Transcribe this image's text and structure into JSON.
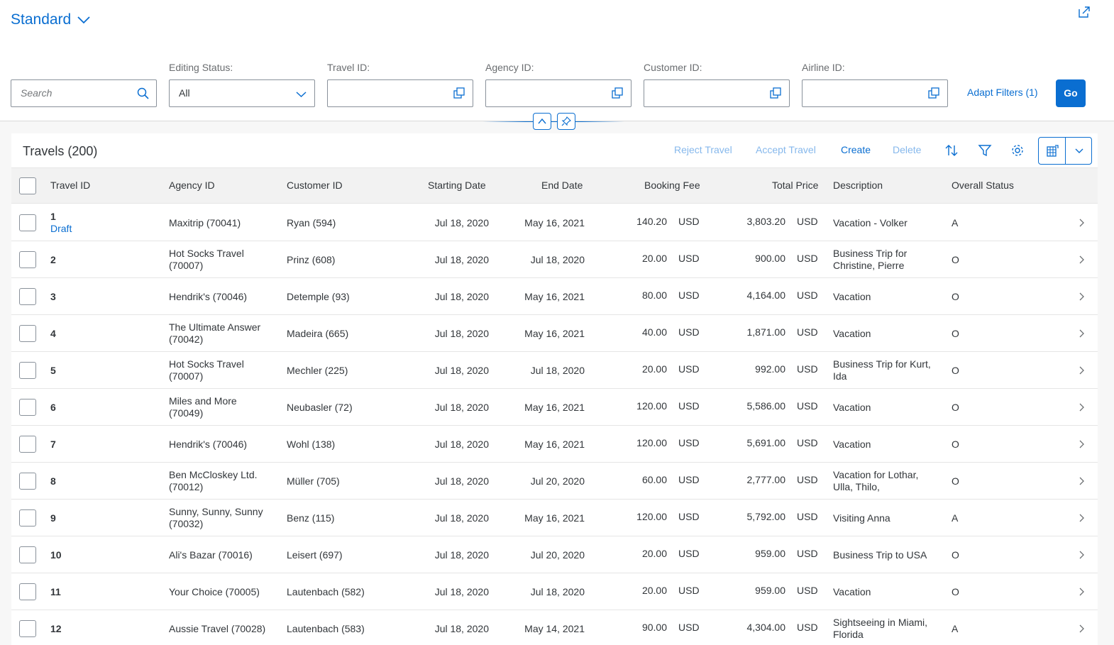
{
  "header": {
    "variant_label": "Standard",
    "search_placeholder": "Search",
    "filters": [
      {
        "label": "Editing Status:",
        "value": "All"
      },
      {
        "label": "Travel ID:",
        "value": ""
      },
      {
        "label": "Agency ID:",
        "value": ""
      },
      {
        "label": "Customer ID:",
        "value": ""
      },
      {
        "label": "Airline ID:",
        "value": ""
      }
    ],
    "adapt_filters_label": "Adapt Filters (1)",
    "go_label": "Go"
  },
  "table": {
    "title": "Travels (200)",
    "actions": {
      "reject": "Reject Travel",
      "accept": "Accept Travel",
      "create": "Create",
      "delete": "Delete"
    },
    "columns": [
      "Travel ID",
      "Agency ID",
      "Customer ID",
      "Starting Date",
      "End Date",
      "Booking Fee",
      "Total Price",
      "Description",
      "Overall Status"
    ],
    "rows": [
      {
        "id": "1",
        "sub": "Draft",
        "agency1": "Maxitrip (70041)",
        "agency2": "",
        "customer": "Ryan (594)",
        "start": "Jul 18, 2020",
        "end": "May 16, 2021",
        "fee": "140.20",
        "fee_cur": "USD",
        "price": "3,803.20",
        "price_cur": "USD",
        "desc1": "Vacation - Volker",
        "desc2": "",
        "status": "A"
      },
      {
        "id": "2",
        "sub": "",
        "agency1": "Hot Socks Travel",
        "agency2": "(70007)",
        "customer": "Prinz (608)",
        "start": "Jul 18, 2020",
        "end": "Jul 18, 2020",
        "fee": "20.00",
        "fee_cur": "USD",
        "price": "900.00",
        "price_cur": "USD",
        "desc1": "Business Trip for",
        "desc2": "Christine, Pierre",
        "status": "O"
      },
      {
        "id": "3",
        "sub": "",
        "agency1": "Hendrik's (70046)",
        "agency2": "",
        "customer": "Detemple (93)",
        "start": "Jul 18, 2020",
        "end": "May 16, 2021",
        "fee": "80.00",
        "fee_cur": "USD",
        "price": "4,164.00",
        "price_cur": "USD",
        "desc1": "Vacation",
        "desc2": "",
        "status": "O"
      },
      {
        "id": "4",
        "sub": "",
        "agency1": "The Ultimate Answer",
        "agency2": "(70042)",
        "customer": "Madeira (665)",
        "start": "Jul 18, 2020",
        "end": "May 16, 2021",
        "fee": "40.00",
        "fee_cur": "USD",
        "price": "1,871.00",
        "price_cur": "USD",
        "desc1": "Vacation",
        "desc2": "",
        "status": "O"
      },
      {
        "id": "5",
        "sub": "",
        "agency1": "Hot Socks Travel",
        "agency2": "(70007)",
        "customer": "Mechler (225)",
        "start": "Jul 18, 2020",
        "end": "Jul 18, 2020",
        "fee": "20.00",
        "fee_cur": "USD",
        "price": "992.00",
        "price_cur": "USD",
        "desc1": "Business Trip for Kurt,",
        "desc2": "Ida",
        "status": "O"
      },
      {
        "id": "6",
        "sub": "",
        "agency1": "Miles and More",
        "agency2": "(70049)",
        "customer": "Neubasler (72)",
        "start": "Jul 18, 2020",
        "end": "May 16, 2021",
        "fee": "120.00",
        "fee_cur": "USD",
        "price": "5,586.00",
        "price_cur": "USD",
        "desc1": "Vacation",
        "desc2": "",
        "status": "O"
      },
      {
        "id": "7",
        "sub": "",
        "agency1": "Hendrik's (70046)",
        "agency2": "",
        "customer": "Wohl (138)",
        "start": "Jul 18, 2020",
        "end": "May 16, 2021",
        "fee": "120.00",
        "fee_cur": "USD",
        "price": "5,691.00",
        "price_cur": "USD",
        "desc1": "Vacation",
        "desc2": "",
        "status": "O"
      },
      {
        "id": "8",
        "sub": "",
        "agency1": "Ben McCloskey Ltd.",
        "agency2": "(70012)",
        "customer": "Müller (705)",
        "start": "Jul 18, 2020",
        "end": "Jul 20, 2020",
        "fee": "60.00",
        "fee_cur": "USD",
        "price": "2,777.00",
        "price_cur": "USD",
        "desc1": "Vacation for Lothar,",
        "desc2": "Ulla, Thilo,",
        "status": "O"
      },
      {
        "id": "9",
        "sub": "",
        "agency1": "Sunny, Sunny, Sunny",
        "agency2": "(70032)",
        "customer": "Benz (115)",
        "start": "Jul 18, 2020",
        "end": "May 16, 2021",
        "fee": "120.00",
        "fee_cur": "USD",
        "price": "5,792.00",
        "price_cur": "USD",
        "desc1": "Visiting Anna",
        "desc2": "",
        "status": "A"
      },
      {
        "id": "10",
        "sub": "",
        "agency1": "Ali's Bazar (70016)",
        "agency2": "",
        "customer": "Leisert (697)",
        "start": "Jul 18, 2020",
        "end": "Jul 20, 2020",
        "fee": "20.00",
        "fee_cur": "USD",
        "price": "959.00",
        "price_cur": "USD",
        "desc1": "Business Trip to USA",
        "desc2": "",
        "status": "O"
      },
      {
        "id": "11",
        "sub": "",
        "agency1": "Your Choice (70005)",
        "agency2": "",
        "customer": "Lautenbach (582)",
        "start": "Jul 18, 2020",
        "end": "Jul 18, 2020",
        "fee": "20.00",
        "fee_cur": "USD",
        "price": "959.00",
        "price_cur": "USD",
        "desc1": "Vacation",
        "desc2": "",
        "status": "O"
      },
      {
        "id": "12",
        "sub": "",
        "agency1": "Aussie Travel (70028)",
        "agency2": "",
        "customer": "Lautenbach (583)",
        "start": "Jul 18, 2020",
        "end": "May 14, 2021",
        "fee": "90.00",
        "fee_cur": "USD",
        "price": "4,304.00",
        "price_cur": "USD",
        "desc1": "Sightseeing in Miami,",
        "desc2": "Florida",
        "status": "A"
      }
    ]
  },
  "colors": {
    "accent": "#0a6ed1",
    "disabled_action": "#86b8ec",
    "text": "#32363a"
  },
  "icons": [
    "share-icon",
    "chevron-down-icon",
    "search-icon",
    "value-help-icon",
    "collapse-up-icon",
    "pin-icon",
    "sort-icon",
    "filter-icon",
    "settings-icon",
    "export-icon",
    "chevron-right-icon"
  ]
}
